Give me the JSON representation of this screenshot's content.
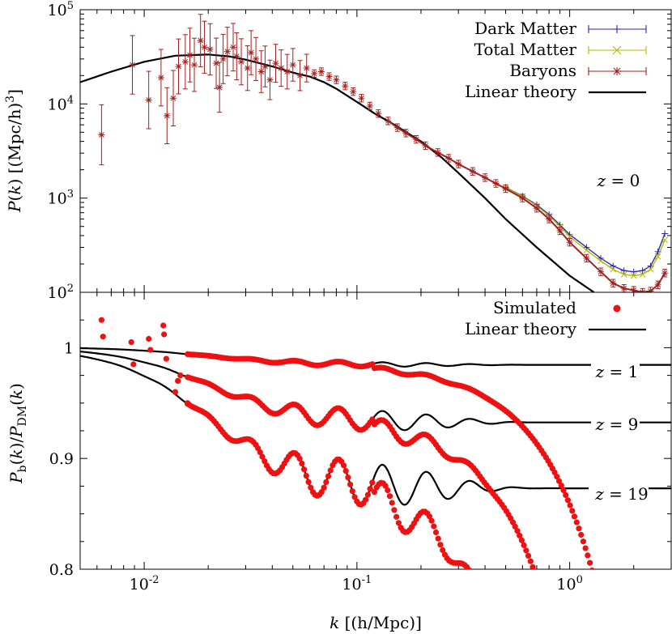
{
  "chart_data": [
    {
      "type": "scatter",
      "panel": "top",
      "ylabel": "P(k) [(Mpc/h)^3]",
      "xscale": "log",
      "yscale": "log",
      "xlim": [
        0.005,
        3.0
      ],
      "ylim": [
        100,
        100000
      ],
      "annotation": {
        "text": "z = 0"
      },
      "legend_placement": "top-right",
      "legend": [
        {
          "label": "Dark Matter",
          "color": "#2a2aa8",
          "marker": "plus-errorbar"
        },
        {
          "label": "Total Matter",
          "color": "#b8b800",
          "marker": "x-errorbar"
        },
        {
          "label": "Baryons",
          "color": "#a02020",
          "marker": "star-errorbar"
        },
        {
          "label": "Linear theory",
          "color": "#000000",
          "marker": "line"
        }
      ],
      "series": [
        {
          "name": "Linear theory",
          "kind": "line",
          "color": "#000000",
          "x": [
            0.005,
            0.007,
            0.01,
            0.014,
            0.02,
            0.025,
            0.03,
            0.04,
            0.05,
            0.06,
            0.07,
            0.08,
            0.1,
            0.12,
            0.15,
            0.2,
            0.25,
            0.3,
            0.4,
            0.5,
            0.7,
            1.0,
            1.3
          ],
          "y": [
            17000,
            22000,
            28000,
            32500,
            33500,
            32000,
            29500,
            25000,
            21500,
            19500,
            17000,
            14500,
            10500,
            8000,
            6000,
            4000,
            2700,
            1850,
            1000,
            600,
            300,
            150,
            100
          ]
        },
        {
          "name": "Baryons",
          "kind": "points",
          "color": "#a02020",
          "x": [
            0.0063,
            0.0088,
            0.0105,
            0.012,
            0.0128,
            0.0137,
            0.0145,
            0.0156,
            0.0164,
            0.0172,
            0.0184,
            0.0192,
            0.0204,
            0.0218,
            0.0226,
            0.0235,
            0.0246,
            0.0262,
            0.0272,
            0.0286,
            0.0306,
            0.0318,
            0.0335,
            0.0355,
            0.037,
            0.039,
            0.0415,
            0.044,
            0.047,
            0.05,
            0.054,
            0.058,
            0.063,
            0.068,
            0.074,
            0.08,
            0.088,
            0.096,
            0.105,
            0.115,
            0.126,
            0.14,
            0.155,
            0.17,
            0.19,
            0.21,
            0.24,
            0.27,
            0.3,
            0.35,
            0.4,
            0.45,
            0.5,
            0.6,
            0.7,
            0.8,
            0.9,
            1.0,
            1.2,
            1.4,
            1.6,
            1.8,
            2.0,
            2.2,
            2.4,
            2.6,
            2.8
          ],
          "y": [
            4700,
            26000,
            11000,
            19000,
            7500,
            11500,
            25000,
            28000,
            33000,
            26000,
            47000,
            40000,
            38000,
            27000,
            15000,
            30000,
            36000,
            40000,
            32000,
            28000,
            24000,
            35000,
            30000,
            22000,
            25000,
            18000,
            27000,
            24000,
            22000,
            26000,
            20000,
            24000,
            21000,
            22000,
            19500,
            18000,
            15500,
            13500,
            11500,
            9500,
            7900,
            6600,
            5600,
            4900,
            4200,
            3600,
            3050,
            2650,
            2300,
            1920,
            1650,
            1430,
            1260,
            1000,
            780,
            600,
            450,
            340,
            230,
            165,
            125,
            110,
            105,
            100,
            103,
            120,
            160
          ]
        },
        {
          "name": "Total Matter",
          "kind": "points",
          "color": "#b8b800",
          "x": [
            0.5,
            0.6,
            0.7,
            0.8,
            0.9,
            1.0,
            1.2,
            1.4,
            1.6,
            1.8,
            2.0,
            2.2,
            2.4,
            2.6,
            2.8
          ],
          "y": [
            1290,
            1040,
            830,
            650,
            500,
            390,
            280,
            215,
            175,
            155,
            150,
            155,
            175,
            240,
            360
          ]
        },
        {
          "name": "Dark Matter",
          "kind": "points",
          "color": "#2a2aa8",
          "x": [
            0.5,
            0.6,
            0.7,
            0.8,
            0.9,
            1.0,
            1.2,
            1.4,
            1.6,
            1.8,
            2.0,
            2.2,
            2.4,
            2.6,
            2.8
          ],
          "y": [
            1300,
            1050,
            850,
            670,
            520,
            410,
            300,
            230,
            190,
            170,
            165,
            170,
            190,
            270,
            420
          ]
        }
      ]
    },
    {
      "type": "scatter",
      "panel": "bottom",
      "xlabel": "k [(h/Mpc)]",
      "ylabel": "P_b(k)/P_DM(k)",
      "xscale": "log",
      "xlim": [
        0.005,
        3.0
      ],
      "ylim": [
        0.8,
        1.05
      ],
      "legend_placement": "top-right",
      "legend": [
        {
          "label": "Simulated",
          "color": "#ee1111",
          "marker": "filled-circle"
        },
        {
          "label": "Linear theory",
          "color": "#000000",
          "marker": "line"
        }
      ],
      "annotations": [
        {
          "text": "z = 1"
        },
        {
          "text": "z = 9"
        },
        {
          "text": "z = 19"
        }
      ],
      "series": [
        {
          "name": "Linear theory z=1",
          "kind": "linear",
          "plateau": 0.9845,
          "amp": 0.016,
          "kc": 0.02,
          "osc": 0.0025
        },
        {
          "name": "Linear theory z=9",
          "kind": "linear",
          "plateau": 0.9325,
          "amp": 0.068,
          "kc": 0.02,
          "osc": 0.011
        },
        {
          "name": "Linear theory z=19",
          "kind": "linear",
          "plateau": 0.873,
          "amp": 0.127,
          "kc": 0.02,
          "osc": 0.023
        },
        {
          "name": "Simulated z=1",
          "kind": "sim",
          "plateau": 0.9845,
          "amp": 0.016,
          "kc": 0.02,
          "osc": 0.0025,
          "kcut": 0.28,
          "cutA": 0.14,
          "cutP": 1.6
        },
        {
          "name": "Simulated z=9",
          "kind": "sim",
          "plateau": 0.9325,
          "amp": 0.068,
          "kc": 0.02,
          "osc": 0.011,
          "kcut": 0.22,
          "cutA": 0.19,
          "cutP": 1.7
        },
        {
          "name": "Simulated z=19",
          "kind": "sim",
          "plateau": 0.873,
          "amp": 0.127,
          "kc": 0.02,
          "osc": 0.023,
          "kcut": 0.16,
          "cutA": 0.22,
          "cutP": 1.7
        },
        {
          "name": "Simulated low-k scatter",
          "kind": "points",
          "x": [
            0.0063,
            0.0064,
            0.0087,
            0.0089,
            0.0105,
            0.0107,
            0.0123,
            0.0124,
            0.0127,
            0.014,
            0.0144,
            0.0148,
            0.016
          ],
          "y": [
            1.025,
            1.01,
            1.005,
            0.985,
            1.008,
            0.998,
            1.02,
            1.012,
            0.99,
            0.96,
            0.97,
            0.975,
            0.95
          ]
        }
      ]
    }
  ]
}
